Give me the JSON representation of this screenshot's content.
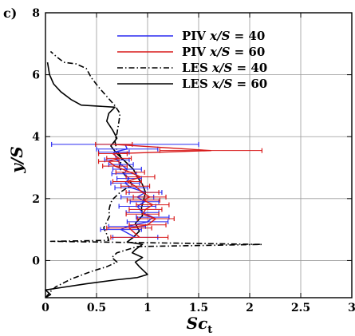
{
  "chart_data": {
    "type": "line",
    "panel_label": "c)",
    "xlabel": {
      "main": "Sc",
      "sub": "t"
    },
    "ylabel": "y/S",
    "xlim": [
      0,
      3
    ],
    "ylim": [
      -1.2,
      8
    ],
    "x_ticks": [
      0,
      0.5,
      1,
      1.5,
      2,
      2.5,
      3
    ],
    "x_tick_labels": [
      "0",
      "0.5",
      "1",
      "1.5",
      "2",
      "2.5",
      "3"
    ],
    "y_ticks": [
      0,
      2,
      4,
      6,
      8
    ],
    "y_tick_labels": [
      "0",
      "2",
      "4",
      "6",
      "8"
    ],
    "grid": true,
    "legend_position": "top-right",
    "series": [
      {
        "label_prefix": "PIV",
        "label_var": "x/S",
        "label_value": "= 40",
        "color": "#2a2af0",
        "style": "solid",
        "error_bars": true,
        "points": [
          [
            0.88,
            0.75
          ],
          [
            0.74,
            1.0
          ],
          [
            0.8,
            1.1
          ],
          [
            1.0,
            1.25
          ],
          [
            1.05,
            1.4
          ],
          [
            0.95,
            1.55
          ],
          [
            0.9,
            1.75
          ],
          [
            0.97,
            1.9
          ],
          [
            0.9,
            2.05
          ],
          [
            0.98,
            2.2
          ],
          [
            0.84,
            2.35
          ],
          [
            0.78,
            2.5
          ],
          [
            0.82,
            2.65
          ],
          [
            0.77,
            2.8
          ],
          [
            0.8,
            2.95
          ],
          [
            0.74,
            3.1
          ],
          [
            0.7,
            3.25
          ],
          [
            0.67,
            3.5
          ],
          [
            0.8,
            3.6
          ],
          [
            0.78,
            3.75
          ]
        ],
        "errors": [
          0.22,
          0.2,
          0.18,
          0.2,
          0.16,
          0.16,
          0.18,
          0.14,
          0.16,
          0.16,
          0.16,
          0.14,
          0.12,
          0.12,
          0.14,
          0.12,
          0.12,
          0.15,
          0.3,
          0.72
        ]
      },
      {
        "label_prefix": "PIV",
        "label_var": "x/S",
        "label_value": "= 60",
        "color": "#d81818",
        "style": "solid",
        "error_bars": true,
        "points": [
          [
            0.92,
            0.75
          ],
          [
            0.82,
            1.05
          ],
          [
            1.0,
            1.15
          ],
          [
            1.08,
            1.35
          ],
          [
            0.95,
            1.5
          ],
          [
            0.98,
            1.65
          ],
          [
            1.05,
            1.8
          ],
          [
            0.96,
            1.95
          ],
          [
            1.02,
            2.05
          ],
          [
            0.95,
            2.2
          ],
          [
            0.88,
            2.4
          ],
          [
            0.8,
            2.55
          ],
          [
            0.93,
            2.7
          ],
          [
            0.83,
            2.85
          ],
          [
            0.68,
            3.05
          ],
          [
            0.62,
            3.2
          ],
          [
            0.72,
            3.3
          ],
          [
            0.66,
            3.45
          ],
          [
            1.62,
            3.55
          ],
          [
            0.67,
            3.75
          ]
        ],
        "errors": [
          0.28,
          0.22,
          0.18,
          0.18,
          0.16,
          0.16,
          0.16,
          0.16,
          0.16,
          0.16,
          0.14,
          0.14,
          0.14,
          0.14,
          0.12,
          0.1,
          0.12,
          0.14,
          0.5,
          0.18
        ]
      },
      {
        "label_prefix": "LES",
        "label_var": "x/S",
        "label_value": "= 40",
        "color": "#000000",
        "style": "dashdot",
        "error_bars": false,
        "points": [
          [
            0.0,
            -1.2
          ],
          [
            0.05,
            -1.0
          ],
          [
            0.1,
            -0.85
          ],
          [
            0.25,
            -0.6
          ],
          [
            0.45,
            -0.35
          ],
          [
            0.6,
            -0.2
          ],
          [
            0.7,
            -0.05
          ],
          [
            0.65,
            0.1
          ],
          [
            0.7,
            0.25
          ],
          [
            0.8,
            0.35
          ],
          [
            0.9,
            0.45
          ],
          [
            2.12,
            0.52
          ],
          [
            0.9,
            0.58
          ],
          [
            0.05,
            0.62
          ],
          [
            0.62,
            0.65
          ],
          [
            0.6,
            0.85
          ],
          [
            0.57,
            1.05
          ],
          [
            0.6,
            1.25
          ],
          [
            0.63,
            1.45
          ],
          [
            0.62,
            1.6
          ],
          [
            0.63,
            1.75
          ],
          [
            0.65,
            1.95
          ],
          [
            0.73,
            2.2
          ],
          [
            0.85,
            2.45
          ],
          [
            0.82,
            2.6
          ],
          [
            0.78,
            2.75
          ],
          [
            0.72,
            3.0
          ],
          [
            0.75,
            3.3
          ],
          [
            0.7,
            3.55
          ],
          [
            0.68,
            3.85
          ],
          [
            0.7,
            4.1
          ],
          [
            0.72,
            4.5
          ],
          [
            0.73,
            4.75
          ],
          [
            0.68,
            5.0
          ],
          [
            0.6,
            5.3
          ],
          [
            0.52,
            5.6
          ],
          [
            0.45,
            5.9
          ],
          [
            0.4,
            6.2
          ],
          [
            0.3,
            6.35
          ],
          [
            0.18,
            6.4
          ],
          [
            0.12,
            6.55
          ],
          [
            0.05,
            6.75
          ]
        ]
      },
      {
        "label_prefix": "LES",
        "label_var": "x/S",
        "label_value": "= 60",
        "color": "#000000",
        "style": "solid",
        "error_bars": false,
        "points": [
          [
            0.0,
            -1.2
          ],
          [
            0.05,
            -1.1
          ],
          [
            0.0,
            -0.95
          ],
          [
            0.1,
            -0.9
          ],
          [
            0.4,
            -0.75
          ],
          [
            0.7,
            -0.62
          ],
          [
            0.9,
            -0.55
          ],
          [
            1.0,
            -0.45
          ],
          [
            0.92,
            -0.2
          ],
          [
            0.88,
            -0.05
          ],
          [
            0.95,
            0.1
          ],
          [
            0.85,
            0.25
          ],
          [
            0.88,
            0.35
          ],
          [
            0.92,
            0.45
          ],
          [
            0.95,
            0.52
          ],
          [
            0.8,
            0.6
          ],
          [
            0.86,
            0.75
          ],
          [
            0.92,
            0.95
          ],
          [
            0.88,
            1.2
          ],
          [
            0.95,
            1.45
          ],
          [
            0.94,
            1.7
          ],
          [
            0.96,
            1.95
          ],
          [
            0.98,
            2.2
          ],
          [
            0.95,
            2.45
          ],
          [
            0.9,
            2.7
          ],
          [
            0.86,
            2.95
          ],
          [
            0.78,
            3.2
          ],
          [
            0.7,
            3.45
          ],
          [
            0.64,
            3.7
          ],
          [
            0.7,
            3.95
          ],
          [
            0.66,
            4.2
          ],
          [
            0.6,
            4.5
          ],
          [
            0.62,
            4.75
          ],
          [
            0.68,
            4.95
          ],
          [
            0.35,
            5.02
          ],
          [
            0.25,
            5.2
          ],
          [
            0.15,
            5.45
          ],
          [
            0.08,
            5.7
          ],
          [
            0.04,
            6.0
          ],
          [
            0.02,
            6.4
          ]
        ]
      }
    ]
  }
}
